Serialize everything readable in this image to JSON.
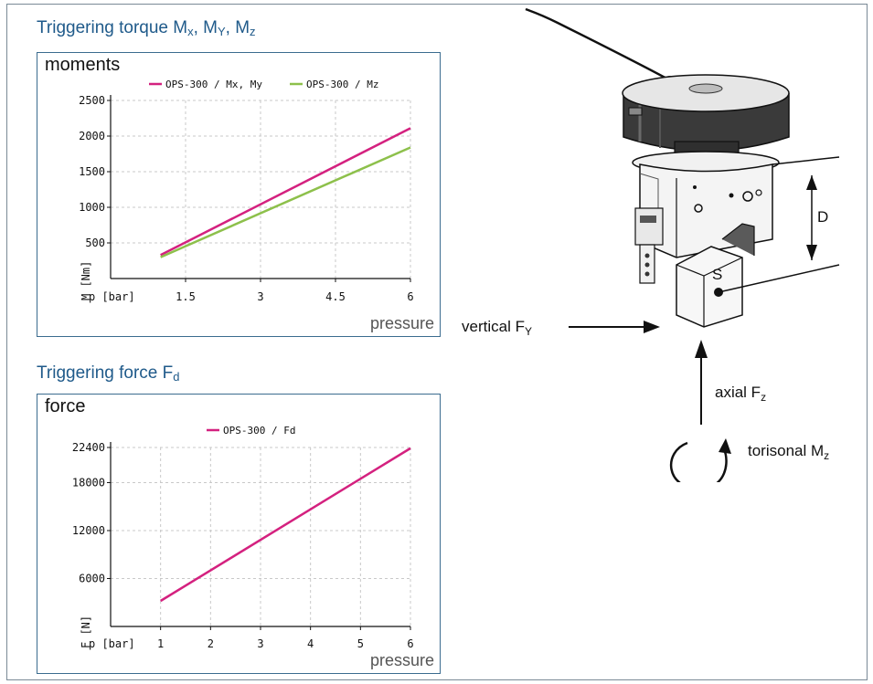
{
  "moments_section": {
    "title_main": "Triggering torque M",
    "sub_x": "x",
    "sep1": ", M",
    "sub_y": "Y",
    "sep2": ", M",
    "sub_z": "z"
  },
  "force_section": {
    "title_main": "Triggering force F",
    "sub_d": "d"
  },
  "labels": {
    "vertical_main": "vertical F",
    "vertical_sub": "Y",
    "axial_main": "axial F",
    "axial_sub": "z",
    "torsional_main": "torisonal M",
    "torsional_sub": "z",
    "dim_d": "D",
    "point_s": "S"
  },
  "colors": {
    "magenta": "#d4217f",
    "green": "#8dc04b",
    "border": "#3b6c8f",
    "title": "#1f5a8a",
    "grid": "#c8c8c8"
  },
  "chart_data": [
    {
      "type": "line",
      "title": "moments",
      "xlabel": "pressure",
      "ylabel": "M [Nm]",
      "xunit_label": "p [bar]",
      "xlim": [
        0,
        6
      ],
      "ylim": [
        0,
        2500
      ],
      "xticks": [
        1.5,
        3,
        4.5,
        6
      ],
      "yticks": [
        500,
        1000,
        1500,
        2000,
        2500
      ],
      "grid": true,
      "legend_position": "top",
      "series": [
        {
          "name": "OPS-300 / Mx, My",
          "color": "#d4217f",
          "x": [
            1,
            6
          ],
          "y": [
            330,
            2110
          ]
        },
        {
          "name": "OPS-300 / Mz",
          "color": "#8dc04b",
          "x": [
            1,
            6
          ],
          "y": [
            300,
            1840
          ]
        }
      ]
    },
    {
      "type": "line",
      "title": "force",
      "xlabel": "pressure",
      "ylabel": "F [N]",
      "xunit_label": "p [bar]",
      "xlim": [
        0,
        6
      ],
      "ylim": [
        0,
        22400
      ],
      "xticks": [
        1,
        2,
        3,
        4,
        5,
        6
      ],
      "yticks": [
        6000,
        12000,
        18000,
        22400
      ],
      "grid": true,
      "legend_position": "top",
      "series": [
        {
          "name": "OPS-300 / Fd",
          "color": "#d4217f",
          "x": [
            1,
            6
          ],
          "y": [
            3200,
            22300
          ]
        }
      ]
    }
  ]
}
